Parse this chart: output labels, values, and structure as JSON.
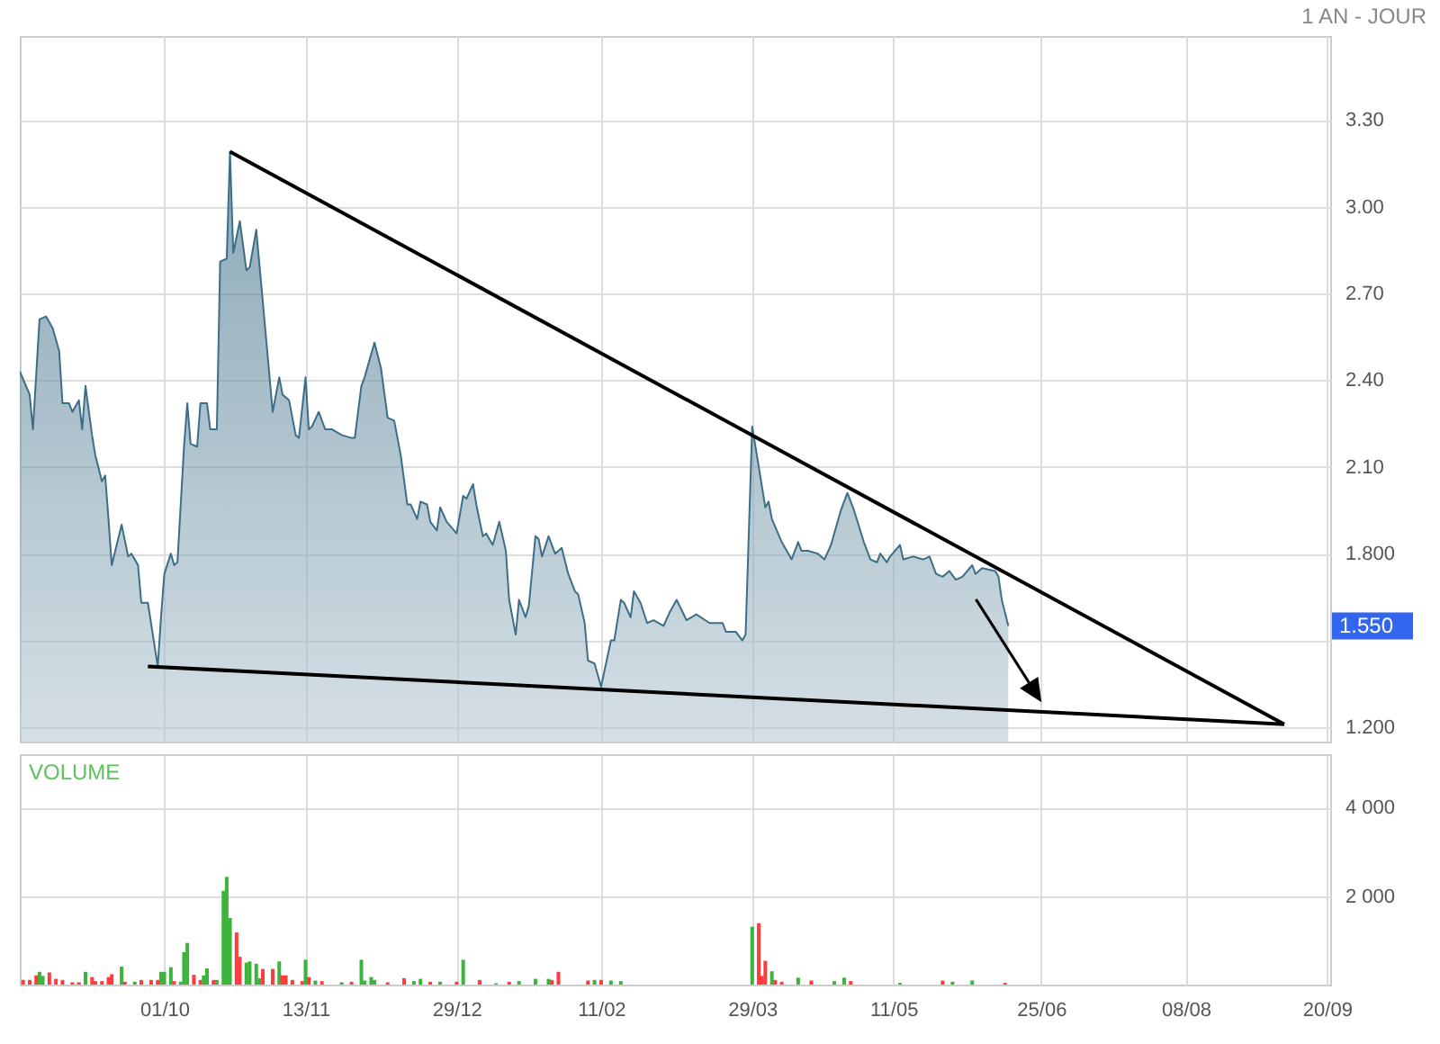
{
  "chart_data": [
    {
      "type": "area",
      "annotations": [
        "1 AN - JOUR",
        "1.550"
      ],
      "xlim": [
        "2012-08-18",
        "2013-09-21"
      ],
      "xticks": [
        {
          "value": "2012-10-01",
          "label": null
        },
        {
          "value": "2012-11-13",
          "label": null
        },
        {
          "value": "2012-12-29",
          "label": null
        },
        {
          "value": "2013-02-11",
          "label": null
        },
        {
          "value": "2013-03-29",
          "label": null
        },
        {
          "value": "2013-05-11",
          "label": null
        },
        {
          "value": "2013-06-25",
          "label": null
        },
        {
          "value": "2013-08-08",
          "label": null
        },
        {
          "value": "2013-09-20",
          "label": null
        }
      ],
      "ylim": [
        1.15,
        3.59
      ],
      "yticks": [
        {
          "value": 1.2,
          "label": "1.200"
        },
        {
          "value": 1.5,
          "label": null
        },
        {
          "value": 1.8,
          "label": "1.800"
        },
        {
          "value": 2.1,
          "label": "2.10"
        },
        {
          "value": 2.4,
          "label": "2.40"
        },
        {
          "value": 2.7,
          "label": "2.70"
        },
        {
          "value": 3.0,
          "label": "3.00"
        },
        {
          "value": 3.3,
          "label": "3.30"
        }
      ],
      "grid": true,
      "tick_labels": "y",
      "series": [
        {
          "color": "#3d6e87",
          "x": [
            "2012-08-18",
            "2012-08-21",
            "2012-08-22",
            "2012-08-24",
            "2012-08-26",
            "2012-08-28",
            "2012-08-30",
            "2012-08-31",
            "2012-09-02",
            "2012-09-03",
            "2012-09-05",
            "2012-09-06",
            "2012-09-07",
            "2012-09-09",
            "2012-09-10",
            "2012-09-12",
            "2012-09-13",
            "2012-09-14",
            "2012-09-15",
            "2012-09-18",
            "2012-09-20",
            "2012-09-21",
            "2012-09-23",
            "2012-09-24",
            "2012-09-26",
            "2012-09-29",
            "2012-09-30",
            "2012-10-01",
            "2012-10-03",
            "2012-10-04",
            "2012-10-05",
            "2012-10-07",
            "2012-10-08",
            "2012-10-09",
            "2012-10-11",
            "2012-10-12",
            "2012-10-14",
            "2012-10-15",
            "2012-10-17",
            "2012-10-18",
            "2012-10-20",
            "2012-10-21",
            "2012-10-22",
            "2012-10-24",
            "2012-10-26",
            "2012-10-27",
            "2012-10-29",
            "2012-10-31",
            "2012-11-03",
            "2012-11-05",
            "2012-11-06",
            "2012-11-08",
            "2012-11-10",
            "2012-11-11",
            "2012-11-13",
            "2012-11-14",
            "2012-11-15",
            "2012-11-17",
            "2012-11-19",
            "2012-11-21",
            "2012-11-24",
            "2012-11-27",
            "2012-11-28",
            "2012-11-30",
            "2012-12-01",
            "2012-12-04",
            "2012-12-06",
            "2012-12-08",
            "2012-12-10",
            "2012-12-12",
            "2012-12-14",
            "2012-12-15",
            "2012-12-17",
            "2012-12-18",
            "2012-12-20",
            "2012-12-21",
            "2012-12-23",
            "2012-12-24",
            "2012-12-26",
            "2012-12-29",
            "2012-12-31",
            "2013-01-01",
            "2013-01-03",
            "2013-01-04",
            "2013-01-06",
            "2013-01-07",
            "2013-01-09",
            "2013-01-11",
            "2013-01-13",
            "2013-01-14",
            "2013-01-16",
            "2013-01-17",
            "2013-01-19",
            "2013-01-20",
            "2013-01-22",
            "2013-01-23",
            "2013-01-24",
            "2013-01-26",
            "2013-01-28",
            "2013-01-30",
            "2013-02-01",
            "2013-02-03",
            "2013-02-04",
            "2013-02-06",
            "2013-02-07",
            "2013-02-09",
            "2013-02-11",
            "2013-02-14",
            "2013-02-15",
            "2013-02-17",
            "2013-02-18",
            "2013-02-20",
            "2013-02-21",
            "2013-02-23",
            "2013-02-25",
            "2013-02-27",
            "2013-03-02",
            "2013-03-04",
            "2013-03-06",
            "2013-03-09",
            "2013-03-12",
            "2013-03-16",
            "2013-03-17",
            "2013-03-20",
            "2013-03-21",
            "2013-03-24",
            "2013-03-26",
            "2013-03-27",
            "2013-03-29",
            "2013-03-31",
            "2013-04-02",
            "2013-04-03",
            "2013-04-04",
            "2013-04-07",
            "2013-04-10",
            "2013-04-12",
            "2013-04-13",
            "2013-04-15",
            "2013-04-18",
            "2013-04-20",
            "2013-04-22",
            "2013-04-25",
            "2013-04-27",
            "2013-04-29",
            "2013-05-02",
            "2013-05-04",
            "2013-05-06",
            "2013-05-07",
            "2013-05-09",
            "2013-05-10",
            "2013-05-13",
            "2013-05-14",
            "2013-05-17",
            "2013-05-20",
            "2013-05-22",
            "2013-05-24",
            "2013-05-26",
            "2013-05-28",
            "2013-05-30",
            "2013-06-01",
            "2013-06-04",
            "2013-06-05",
            "2013-06-07",
            "2013-06-11",
            "2013-06-12",
            "2013-06-13",
            "2013-06-15"
          ],
          "values": [
            2.43,
            2.35,
            2.23,
            2.61,
            2.62,
            2.58,
            2.5,
            2.32,
            2.32,
            2.29,
            2.33,
            2.23,
            2.38,
            2.21,
            2.14,
            2.05,
            2.07,
            1.92,
            1.76,
            1.9,
            1.79,
            1.8,
            1.76,
            1.63,
            1.63,
            1.41,
            1.58,
            1.73,
            1.8,
            1.76,
            1.77,
            2.17,
            2.32,
            2.18,
            2.17,
            2.32,
            2.32,
            2.23,
            2.23,
            2.81,
            2.82,
            3.19,
            2.84,
            2.95,
            2.78,
            2.79,
            2.92,
            2.67,
            2.29,
            2.41,
            2.35,
            2.33,
            2.21,
            2.2,
            2.41,
            2.23,
            2.24,
            2.29,
            2.23,
            2.23,
            2.21,
            2.2,
            2.2,
            2.38,
            2.41,
            2.53,
            2.44,
            2.27,
            2.26,
            2.14,
            1.97,
            1.97,
            1.92,
            1.98,
            1.97,
            1.91,
            1.88,
            1.96,
            1.91,
            1.87,
            2.0,
            1.99,
            2.04,
            1.97,
            1.86,
            1.87,
            1.83,
            1.91,
            1.81,
            1.64,
            1.52,
            1.64,
            1.58,
            1.62,
            1.86,
            1.85,
            1.79,
            1.86,
            1.8,
            1.82,
            1.73,
            1.67,
            1.66,
            1.56,
            1.43,
            1.42,
            1.34,
            1.5,
            1.5,
            1.64,
            1.63,
            1.58,
            1.67,
            1.63,
            1.56,
            1.57,
            1.55,
            1.6,
            1.64,
            1.57,
            1.59,
            1.56,
            1.56,
            1.56,
            1.53,
            1.53,
            1.5,
            1.52,
            2.24,
            2.1,
            1.96,
            1.98,
            1.92,
            1.84,
            1.78,
            1.84,
            1.81,
            1.81,
            1.8,
            1.78,
            1.83,
            1.95,
            2.01,
            1.95,
            1.84,
            1.78,
            1.77,
            1.8,
            1.77,
            1.79,
            1.83,
            1.78,
            1.79,
            1.78,
            1.79,
            1.73,
            1.72,
            1.74,
            1.71,
            1.72,
            1.76,
            1.73,
            1.75,
            1.74,
            1.72,
            1.64,
            1.55
          ]
        },
        {
          "type": "line",
          "color": "#000000",
          "x": [
            "2012-10-21",
            "2013-09-07"
          ],
          "values": [
            3.19,
            1.21
          ]
        },
        {
          "type": "line",
          "color": "#000000",
          "x": [
            "2012-09-26",
            "2013-09-07"
          ],
          "values": [
            1.41,
            1.21
          ]
        }
      ]
    },
    {
      "type": "bar",
      "title": "VOLUME",
      "xlim": [
        "2012-08-18",
        "2013-09-21"
      ],
      "xticks": [
        {
          "value": "2012-10-01",
          "label": "01/10"
        },
        {
          "value": "2012-11-13",
          "label": "13/11"
        },
        {
          "value": "2012-12-29",
          "label": "29/12"
        },
        {
          "value": "2013-02-11",
          "label": "11/02"
        },
        {
          "value": "2013-03-29",
          "label": "29/03"
        },
        {
          "value": "2013-05-11",
          "label": "11/05"
        },
        {
          "value": "2013-06-25",
          "label": "25/06"
        },
        {
          "value": "2013-08-08",
          "label": "08/08"
        },
        {
          "value": "2013-09-20",
          "label": "20/09"
        }
      ],
      "ylim": [
        0,
        5200
      ],
      "yticks": [
        {
          "value": 2000,
          "label": "2 000"
        },
        {
          "value": 4000,
          "label": "4 000"
        }
      ],
      "grid": true,
      "x": [
        "2012-08-19",
        "2012-08-21",
        "2012-08-23",
        "2012-08-24",
        "2012-08-25",
        "2012-08-27",
        "2012-08-29",
        "2012-08-31",
        "2012-09-03",
        "2012-09-05",
        "2012-09-07",
        "2012-09-09",
        "2012-09-10",
        "2012-09-12",
        "2012-09-14",
        "2012-09-15",
        "2012-09-18",
        "2012-09-19",
        "2012-09-22",
        "2012-09-24",
        "2012-09-27",
        "2012-09-29",
        "2012-09-30",
        "2012-10-01",
        "2012-10-03",
        "2012-10-04",
        "2012-10-06",
        "2012-10-07",
        "2012-10-08",
        "2012-10-10",
        "2012-10-12",
        "2012-10-13",
        "2012-10-14",
        "2012-10-16",
        "2012-10-17",
        "2012-10-19",
        "2012-10-20",
        "2012-10-21",
        "2012-10-23",
        "2012-10-24",
        "2012-10-26",
        "2012-10-27",
        "2012-10-29",
        "2012-10-30",
        "2012-10-31",
        "2012-11-03",
        "2012-11-05",
        "2012-11-06",
        "2012-11-07",
        "2012-11-09",
        "2012-11-12",
        "2012-11-13",
        "2012-11-14",
        "2012-11-16",
        "2012-11-18",
        "2012-11-24",
        "2012-11-27",
        "2012-11-30",
        "2012-12-01",
        "2012-12-03",
        "2012-12-04",
        "2012-12-08",
        "2012-12-13",
        "2012-12-16",
        "2012-12-18",
        "2012-12-21",
        "2012-12-24",
        "2012-12-29",
        "2012-12-31",
        "2013-01-05",
        "2013-01-10",
        "2013-01-14",
        "2013-01-17",
        "2013-01-22",
        "2013-01-26",
        "2013-01-27",
        "2013-01-29",
        "2013-02-07",
        "2013-02-09",
        "2013-02-11",
        "2013-02-14",
        "2013-02-17",
        "2013-03-29",
        "2013-03-31",
        "2013-04-01",
        "2013-04-02",
        "2013-04-04",
        "2013-04-05",
        "2013-04-07",
        "2013-04-12",
        "2013-04-16",
        "2013-04-23",
        "2013-04-26",
        "2013-04-28",
        "2013-05-13",
        "2013-05-26",
        "2013-05-29",
        "2013-06-04",
        "2013-06-14"
      ],
      "values": [
        105,
        105,
        209,
        288,
        196,
        275,
        130,
        105,
        52,
        52,
        288,
        170,
        78,
        78,
        170,
        235,
        405,
        65,
        65,
        105,
        105,
        105,
        288,
        288,
        392,
        78,
        65,
        732,
        941,
        222,
        105,
        209,
        366,
        105,
        105,
        2117,
        2431,
        1503,
        1176,
        627,
        497,
        523,
        470,
        144,
        353,
        353,
        523,
        209,
        209,
        105,
        78,
        562,
        170,
        92,
        78,
        52,
        65,
        562,
        92,
        170,
        105,
        52,
        144,
        78,
        130,
        65,
        65,
        65,
        562,
        105,
        30,
        65,
        78,
        130,
        130,
        105,
        288,
        92,
        105,
        105,
        92,
        78,
        1307,
        1385,
        196,
        536,
        301,
        105,
        65,
        157,
        92,
        78,
        157,
        78,
        39,
        92,
        65,
        92,
        39
      ],
      "colors": [
        "#ff3b3b",
        "#ff3b3b",
        "#ff3b3b",
        "#3cb43c",
        "#3cb43c",
        "#ff3b3b",
        "#ff3b3b",
        "#ff3b3b",
        "#ff3b3b",
        "#ff3b3b",
        "#3cb43c",
        "#ff3b3b",
        "#ff3b3b",
        "#ff3b3b",
        "#ff3b3b",
        "#ff3b3b",
        "#3cb43c",
        "#ff3b3b",
        "#3cb43c",
        "#ff3b3b",
        "#ff3b3b",
        "#ff3b3b",
        "#3cb43c",
        "#3cb43c",
        "#3cb43c",
        "#ff3b3b",
        "#3cb43c",
        "#3cb43c",
        "#3cb43c",
        "#ff3b3b",
        "#ff3b3b",
        "#3cb43c",
        "#3cb43c",
        "#ff3b3b",
        "#3cb43c",
        "#3cb43c",
        "#3cb43c",
        "#3cb43c",
        "#ff3b3b",
        "#ff3b3b",
        "#3cb43c",
        "#3cb43c",
        "#3cb43c",
        "#3cb43c",
        "#ff3b3b",
        "#ff3b3b",
        "#3cb43c",
        "#ff3b3b",
        "#ff3b3b",
        "#ff3b3b",
        "#ff3b3b",
        "#3cb43c",
        "#ff3b3b",
        "#3cb43c",
        "#ff3b3b",
        "#3cb43c",
        "#ff3b3b",
        "#3cb43c",
        "#3cb43c",
        "#3cb43c",
        "#3cb43c",
        "#ff3b3b",
        "#ff3b3b",
        "#3cb43c",
        "#3cb43c",
        "#ff3b3b",
        "#3cb43c",
        "#ff3b3b",
        "#3cb43c",
        "#ff3b3b",
        "#3cb43c",
        "#ff3b3b",
        "#3cb43c",
        "#3cb43c",
        "#3cb43c",
        "#ff3b3b",
        "#ff3b3b",
        "#ff3b3b",
        "#3cb43c",
        "#ff3b3b",
        "#3cb43c",
        "#3cb43c",
        "#3cb43c",
        "#ff3b3b",
        "#ff3b3b",
        "#ff3b3b",
        "#3cb43c",
        "#ff3b3b",
        "#ff3b3b",
        "#3cb43c",
        "#ff3b3b",
        "#3cb43c",
        "#3cb43c",
        "#ff3b3b",
        "#3cb43c",
        "#ff3b3b",
        "#3cb43c",
        "#3cb43c",
        "#ff3b3b"
      ]
    }
  ]
}
